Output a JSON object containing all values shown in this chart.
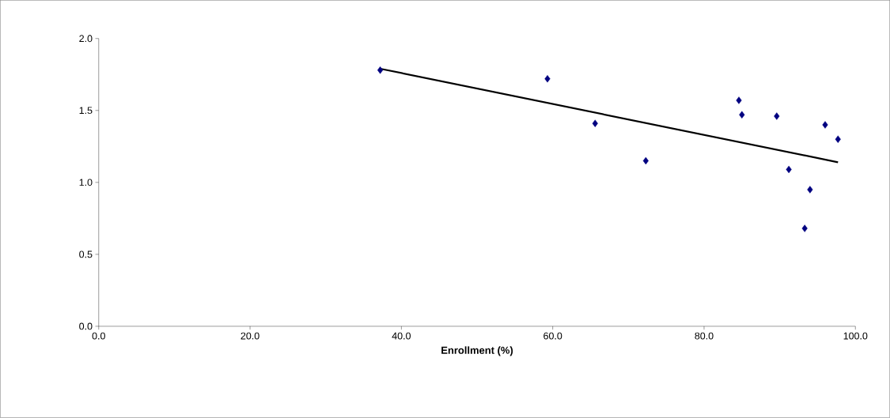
{
  "chart_data": {
    "type": "scatter",
    "xlabel": "Enrollment (%)",
    "xlim": [
      0,
      100
    ],
    "ylim": [
      0,
      2
    ],
    "xticks": [
      {
        "value": 0,
        "label": "0.0"
      },
      {
        "value": 20,
        "label": "20.0"
      },
      {
        "value": 40,
        "label": "40.0"
      },
      {
        "value": 60,
        "label": "60.0"
      },
      {
        "value": 80,
        "label": "80.0"
      },
      {
        "value": 100,
        "label": "100.0"
      }
    ],
    "yticks": [
      {
        "value": 0,
        "label": "0.0"
      },
      {
        "value": 0.5,
        "label": "0.5"
      },
      {
        "value": 1,
        "label": "1.0"
      },
      {
        "value": 1.5,
        "label": "1.5"
      },
      {
        "value": 2,
        "label": "2.0"
      }
    ],
    "marker": "diamond",
    "series": [
      {
        "color": "#000080",
        "x": [
          37.2,
          59.3,
          65.6,
          72.3,
          84.6,
          85.0,
          89.6,
          91.2,
          93.3,
          94.0,
          96.0,
          97.7
        ],
        "values": [
          1.78,
          1.72,
          1.41,
          1.15,
          1.57,
          1.47,
          1.46,
          1.09,
          0.68,
          0.95,
          1.4,
          1.3
        ]
      },
      {
        "type": "line",
        "color": "#000000",
        "marker": "none",
        "line_style": "solid",
        "x": [
          37.2,
          97.7
        ],
        "values": [
          1.79,
          1.14
        ]
      }
    ]
  }
}
